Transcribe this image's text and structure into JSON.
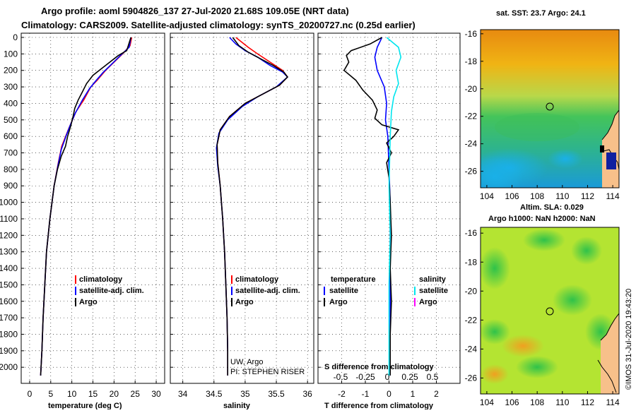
{
  "header": {
    "line1": "Argo profile: aoml 5904826_137 27-Jul-2020 21.68S 109.05E (NRT data)",
    "line2": "Climatology: CARS2009. Satellite-adjusted climatology: synTS_20200727.nc (0.25d earlier)"
  },
  "colors": {
    "climatology": "#ff0000",
    "satellite": "#0000ff",
    "argo": "#000000",
    "satellite_s": "#00e5ee",
    "argo_s": "#ff00ff"
  },
  "chart_data": [
    {
      "type": "line",
      "id": "temperature",
      "xlabel": "temperature (deg C)",
      "ylabel": "",
      "xlim": [
        -2,
        32
      ],
      "ylim": [
        2100,
        0
      ],
      "xticks": [
        0,
        5,
        10,
        15,
        20,
        25,
        30
      ],
      "yticks": [
        0,
        100,
        200,
        300,
        400,
        500,
        600,
        700,
        800,
        900,
        1000,
        1100,
        1200,
        1300,
        1400,
        1500,
        1600,
        1700,
        1800,
        1900,
        2000
      ],
      "legend": [
        "climatology",
        "satellite-adj. clim.",
        "Argo"
      ],
      "series": [
        {
          "name": "climatology",
          "color": "#ff0000",
          "points": [
            [
              24.2,
              0
            ],
            [
              23.8,
              50
            ],
            [
              22,
              100
            ],
            [
              20,
              150
            ],
            [
              18,
              200
            ],
            [
              16,
              260
            ],
            [
              14.5,
              300
            ],
            [
              12.8,
              380
            ],
            [
              11,
              450
            ],
            [
              9.3,
              550
            ],
            [
              7.6,
              660
            ],
            [
              6.8,
              760
            ],
            [
              5.8,
              900
            ],
            [
              4.8,
              1100
            ],
            [
              4.0,
              1300
            ],
            [
              3.6,
              1500
            ],
            [
              3.2,
              1700
            ],
            [
              2.9,
              1900
            ],
            [
              2.6,
              2050
            ]
          ]
        },
        {
          "name": "satellite-adj. clim.",
          "color": "#0000ff",
          "points": [
            [
              24,
              0
            ],
            [
              23.6,
              60
            ],
            [
              21.5,
              110
            ],
            [
              19.5,
              160
            ],
            [
              17.5,
              210
            ],
            [
              15.8,
              260
            ],
            [
              14.2,
              310
            ],
            [
              12.5,
              380
            ],
            [
              10.8,
              460
            ],
            [
              9.5,
              540
            ],
            [
              8.6,
              600
            ],
            [
              7.5,
              680
            ],
            [
              6.7,
              780
            ],
            [
              5.8,
              900
            ],
            [
              4.8,
              1100
            ],
            [
              4.0,
              1300
            ],
            [
              3.6,
              1500
            ],
            [
              3.2,
              1700
            ],
            [
              2.9,
              1900
            ],
            [
              2.6,
              2050
            ]
          ]
        },
        {
          "name": "Argo",
          "color": "#000000",
          "points": [
            [
              24,
              0
            ],
            [
              23,
              80
            ],
            [
              21,
              110
            ],
            [
              19,
              150
            ],
            [
              17,
              190
            ],
            [
              15,
              230
            ],
            [
              13.5,
              280
            ],
            [
              12.5,
              330
            ],
            [
              11.5,
              380
            ],
            [
              10.7,
              430
            ],
            [
              10.3,
              480
            ],
            [
              9.7,
              540
            ],
            [
              9,
              600
            ],
            [
              8.5,
              660
            ],
            [
              7.5,
              720
            ],
            [
              6.6,
              800
            ],
            [
              5.8,
              900
            ],
            [
              4.8,
              1100
            ],
            [
              4.0,
              1300
            ],
            [
              3.6,
              1500
            ],
            [
              3.2,
              1700
            ],
            [
              2.9,
              1900
            ],
            [
              2.6,
              2050
            ]
          ]
        }
      ]
    },
    {
      "type": "line",
      "id": "salinity",
      "xlabel": "salinity",
      "ylabel": "",
      "xlim": [
        33.8,
        36.1
      ],
      "ylim": [
        2100,
        0
      ],
      "xticks": [
        34,
        34.5,
        35,
        35.5,
        36
      ],
      "legend": [
        "climatology",
        "satellite-adj. clim.",
        "Argo"
      ],
      "credits": [
        "UW, Argo",
        "PI: STEPHEN RISER"
      ],
      "series": [
        {
          "name": "climatology",
          "color": "#ff0000",
          "points": [
            [
              34.85,
              0
            ],
            [
              34.95,
              30
            ],
            [
              35.05,
              60
            ],
            [
              35.2,
              100
            ],
            [
              35.4,
              150
            ],
            [
              35.6,
              200
            ],
            [
              35.68,
              240
            ],
            [
              35.55,
              290
            ],
            [
              35.3,
              340
            ],
            [
              35.0,
              400
            ],
            [
              34.75,
              480
            ],
            [
              34.6,
              560
            ],
            [
              34.55,
              650
            ],
            [
              34.56,
              760
            ],
            [
              34.6,
              900
            ],
            [
              34.64,
              1100
            ],
            [
              34.67,
              1300
            ],
            [
              34.69,
              1500
            ],
            [
              34.71,
              1700
            ],
            [
              34.72,
              1900
            ],
            [
              34.72,
              2050
            ]
          ]
        },
        {
          "name": "satellite-adj. clim.",
          "color": "#0000ff",
          "points": [
            [
              34.75,
              0
            ],
            [
              34.85,
              40
            ],
            [
              35,
              80
            ],
            [
              35.2,
              120
            ],
            [
              35.4,
              170
            ],
            [
              35.6,
              210
            ],
            [
              35.68,
              240
            ],
            [
              35.5,
              300
            ],
            [
              35.2,
              360
            ],
            [
              34.95,
              420
            ],
            [
              34.72,
              500
            ],
            [
              34.58,
              580
            ],
            [
              34.54,
              670
            ],
            [
              34.56,
              780
            ],
            [
              34.6,
              900
            ],
            [
              34.64,
              1100
            ],
            [
              34.67,
              1300
            ],
            [
              34.69,
              1500
            ],
            [
              34.71,
              1700
            ],
            [
              34.72,
              1900
            ],
            [
              34.72,
              2050
            ]
          ]
        },
        {
          "name": "Argo",
          "color": "#000000",
          "points": [
            [
              34.8,
              0
            ],
            [
              34.9,
              50
            ],
            [
              35.05,
              90
            ],
            [
              35.25,
              130
            ],
            [
              35.45,
              170
            ],
            [
              35.62,
              210
            ],
            [
              35.68,
              240
            ],
            [
              35.55,
              290
            ],
            [
              35.3,
              340
            ],
            [
              35.0,
              400
            ],
            [
              34.75,
              480
            ],
            [
              34.6,
              560
            ],
            [
              34.55,
              650
            ],
            [
              34.56,
              760
            ],
            [
              34.6,
              900
            ],
            [
              34.64,
              1100
            ],
            [
              34.67,
              1300
            ],
            [
              34.69,
              1500
            ],
            [
              34.71,
              1700
            ],
            [
              34.72,
              1900
            ],
            [
              34.72,
              2050
            ]
          ]
        }
      ]
    },
    {
      "type": "line",
      "id": "difference",
      "xlabel": "T difference from climatology",
      "xlabel2": "S difference from climatology",
      "xlim": [
        -3,
        3
      ],
      "ylim": [
        2100,
        0
      ],
      "xticks": [
        -2,
        -1,
        0,
        1,
        2
      ],
      "xticks2": [
        "-0.5",
        "-0.25",
        "0",
        "0.25",
        "0.5"
      ],
      "legend_left": {
        "title": "temperature",
        "items": [
          "satellite",
          "Argo"
        ]
      },
      "legend_right": {
        "title": "salinity",
        "items": [
          "satellite",
          "Argo"
        ]
      },
      "series": [
        {
          "name": "satellite T",
          "color": "#0000ff",
          "points": [
            [
              -0.3,
              0
            ],
            [
              -0.5,
              60
            ],
            [
              -0.6,
              120
            ],
            [
              -0.5,
              200
            ],
            [
              -0.2,
              300
            ],
            [
              -0.1,
              400
            ],
            [
              -0.15,
              500
            ],
            [
              -0.05,
              600
            ],
            [
              0,
              800
            ],
            [
              0.05,
              1000
            ],
            [
              0.05,
              1300
            ],
            [
              0.05,
              1600
            ],
            [
              0.05,
              2050
            ]
          ]
        },
        {
          "name": "Argo T",
          "color": "#000000",
          "points": [
            [
              -0.3,
              0
            ],
            [
              -0.8,
              40
            ],
            [
              -1.6,
              80
            ],
            [
              -1.8,
              110
            ],
            [
              -1.7,
              150
            ],
            [
              -1.9,
              200
            ],
            [
              -1.4,
              260
            ],
            [
              -1.1,
              320
            ],
            [
              -0.7,
              380
            ],
            [
              -0.5,
              440
            ],
            [
              -0.6,
              490
            ],
            [
              -0.3,
              530
            ],
            [
              0.4,
              560
            ],
            [
              0.2,
              600
            ],
            [
              -0.1,
              640
            ],
            [
              0.1,
              700
            ],
            [
              -0.1,
              760
            ],
            [
              0,
              850
            ],
            [
              0.05,
              1000
            ],
            [
              0.1,
              1200
            ],
            [
              0.05,
              1400
            ],
            [
              0.1,
              1600
            ],
            [
              0.05,
              1800
            ],
            [
              0.05,
              2050
            ]
          ]
        },
        {
          "name": "satellite S",
          "color": "#00e5ee",
          "points": [
            [
              -0.1,
              0
            ],
            [
              0.4,
              60
            ],
            [
              0.5,
              120
            ],
            [
              0.3,
              200
            ],
            [
              0.4,
              280
            ],
            [
              0.2,
              360
            ],
            [
              0.1,
              450
            ],
            [
              0.05,
              600
            ],
            [
              0,
              900
            ],
            [
              0.05,
              1200
            ],
            [
              0,
              1500
            ],
            [
              0,
              1800
            ],
            [
              0,
              2050
            ]
          ]
        }
      ]
    }
  ],
  "maps": {
    "sst": {
      "title": "sat. SST: 23.7 Argo: 24.1",
      "xticks": [
        "104",
        "106",
        "108",
        "110",
        "112",
        "114"
      ],
      "yticks": [
        "-16",
        "-18",
        "-20",
        "-22",
        "-24",
        "-26"
      ]
    },
    "sla": {
      "title1": "Altim. SLA: 0.029",
      "title2": "Argo h1000: NaN h2000: NaN",
      "xticks": [
        "104",
        "106",
        "108",
        "110",
        "112",
        "114"
      ],
      "yticks": [
        "-16",
        "-18",
        "-20",
        "-22",
        "-24",
        "-26"
      ]
    },
    "marker_lon": 109.05,
    "marker_lat": -21.68
  },
  "footer": {
    "credit": "©IMOS 31-Jul-2020 19:43:20"
  },
  "labels": {
    "climatology": "climatology",
    "satellite_adj": "satellite-adj. clim.",
    "argo": "Argo",
    "temperature": "temperature",
    "salinity": "salinity",
    "satellite": "satellite"
  }
}
